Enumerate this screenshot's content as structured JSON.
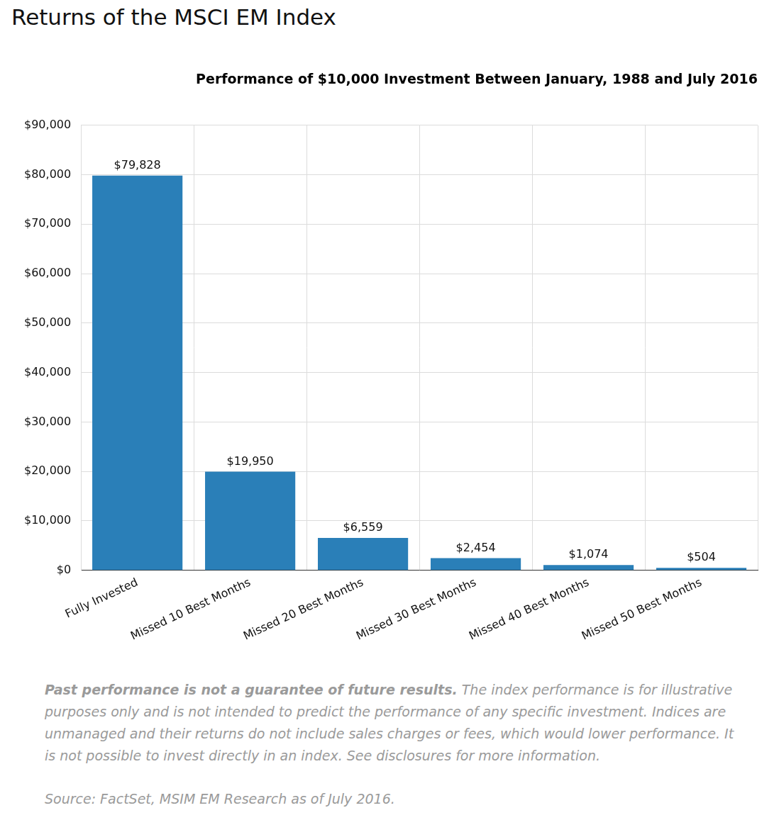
{
  "page_title": "Returns of the MSCI EM Index",
  "note_lead": "Past performance is not a guarantee of future results.",
  "note": "The index performance is for illustrative purposes only and is not intended to predict the performance of any specific investment. Indices are unmanaged and their returns do not include sales charges or fees, which would lower performance. It is not possible to invest directly in an index. See disclosures for more information.",
  "source": "Source: FactSet, MSIM EM Research as of July 2016.",
  "chart_data": {
    "type": "bar",
    "title": "Performance of $10,000 Investment Between January, 1988 and July 2016",
    "categories": [
      "Fully Invested",
      "Missed 10 Best Months",
      "Missed 20 Best Months",
      "Missed 30 Best Months",
      "Missed 40 Best Months",
      "Missed 50 Best Months"
    ],
    "values": [
      79828,
      19950,
      6559,
      2454,
      1074,
      504
    ],
    "value_labels": [
      "$79,828",
      "$19,950",
      "$6,559",
      "$2,454",
      "$1,074",
      "$504"
    ],
    "data_labels": true,
    "color": "#2a7fb8",
    "ylim": [
      0,
      90000
    ],
    "yticks": [
      {
        "value": 0,
        "label": "$0"
      },
      {
        "value": 10000,
        "label": "$10,000"
      },
      {
        "value": 20000,
        "label": "$20,000"
      },
      {
        "value": 30000,
        "label": "$30,000"
      },
      {
        "value": 40000,
        "label": "$40,000"
      },
      {
        "value": 50000,
        "label": "$50,000"
      },
      {
        "value": 60000,
        "label": "$60,000"
      },
      {
        "value": 70000,
        "label": "$70,000"
      },
      {
        "value": 80000,
        "label": "$80,000"
      },
      {
        "value": 90000,
        "label": "$90,000"
      }
    ],
    "grid": true
  }
}
